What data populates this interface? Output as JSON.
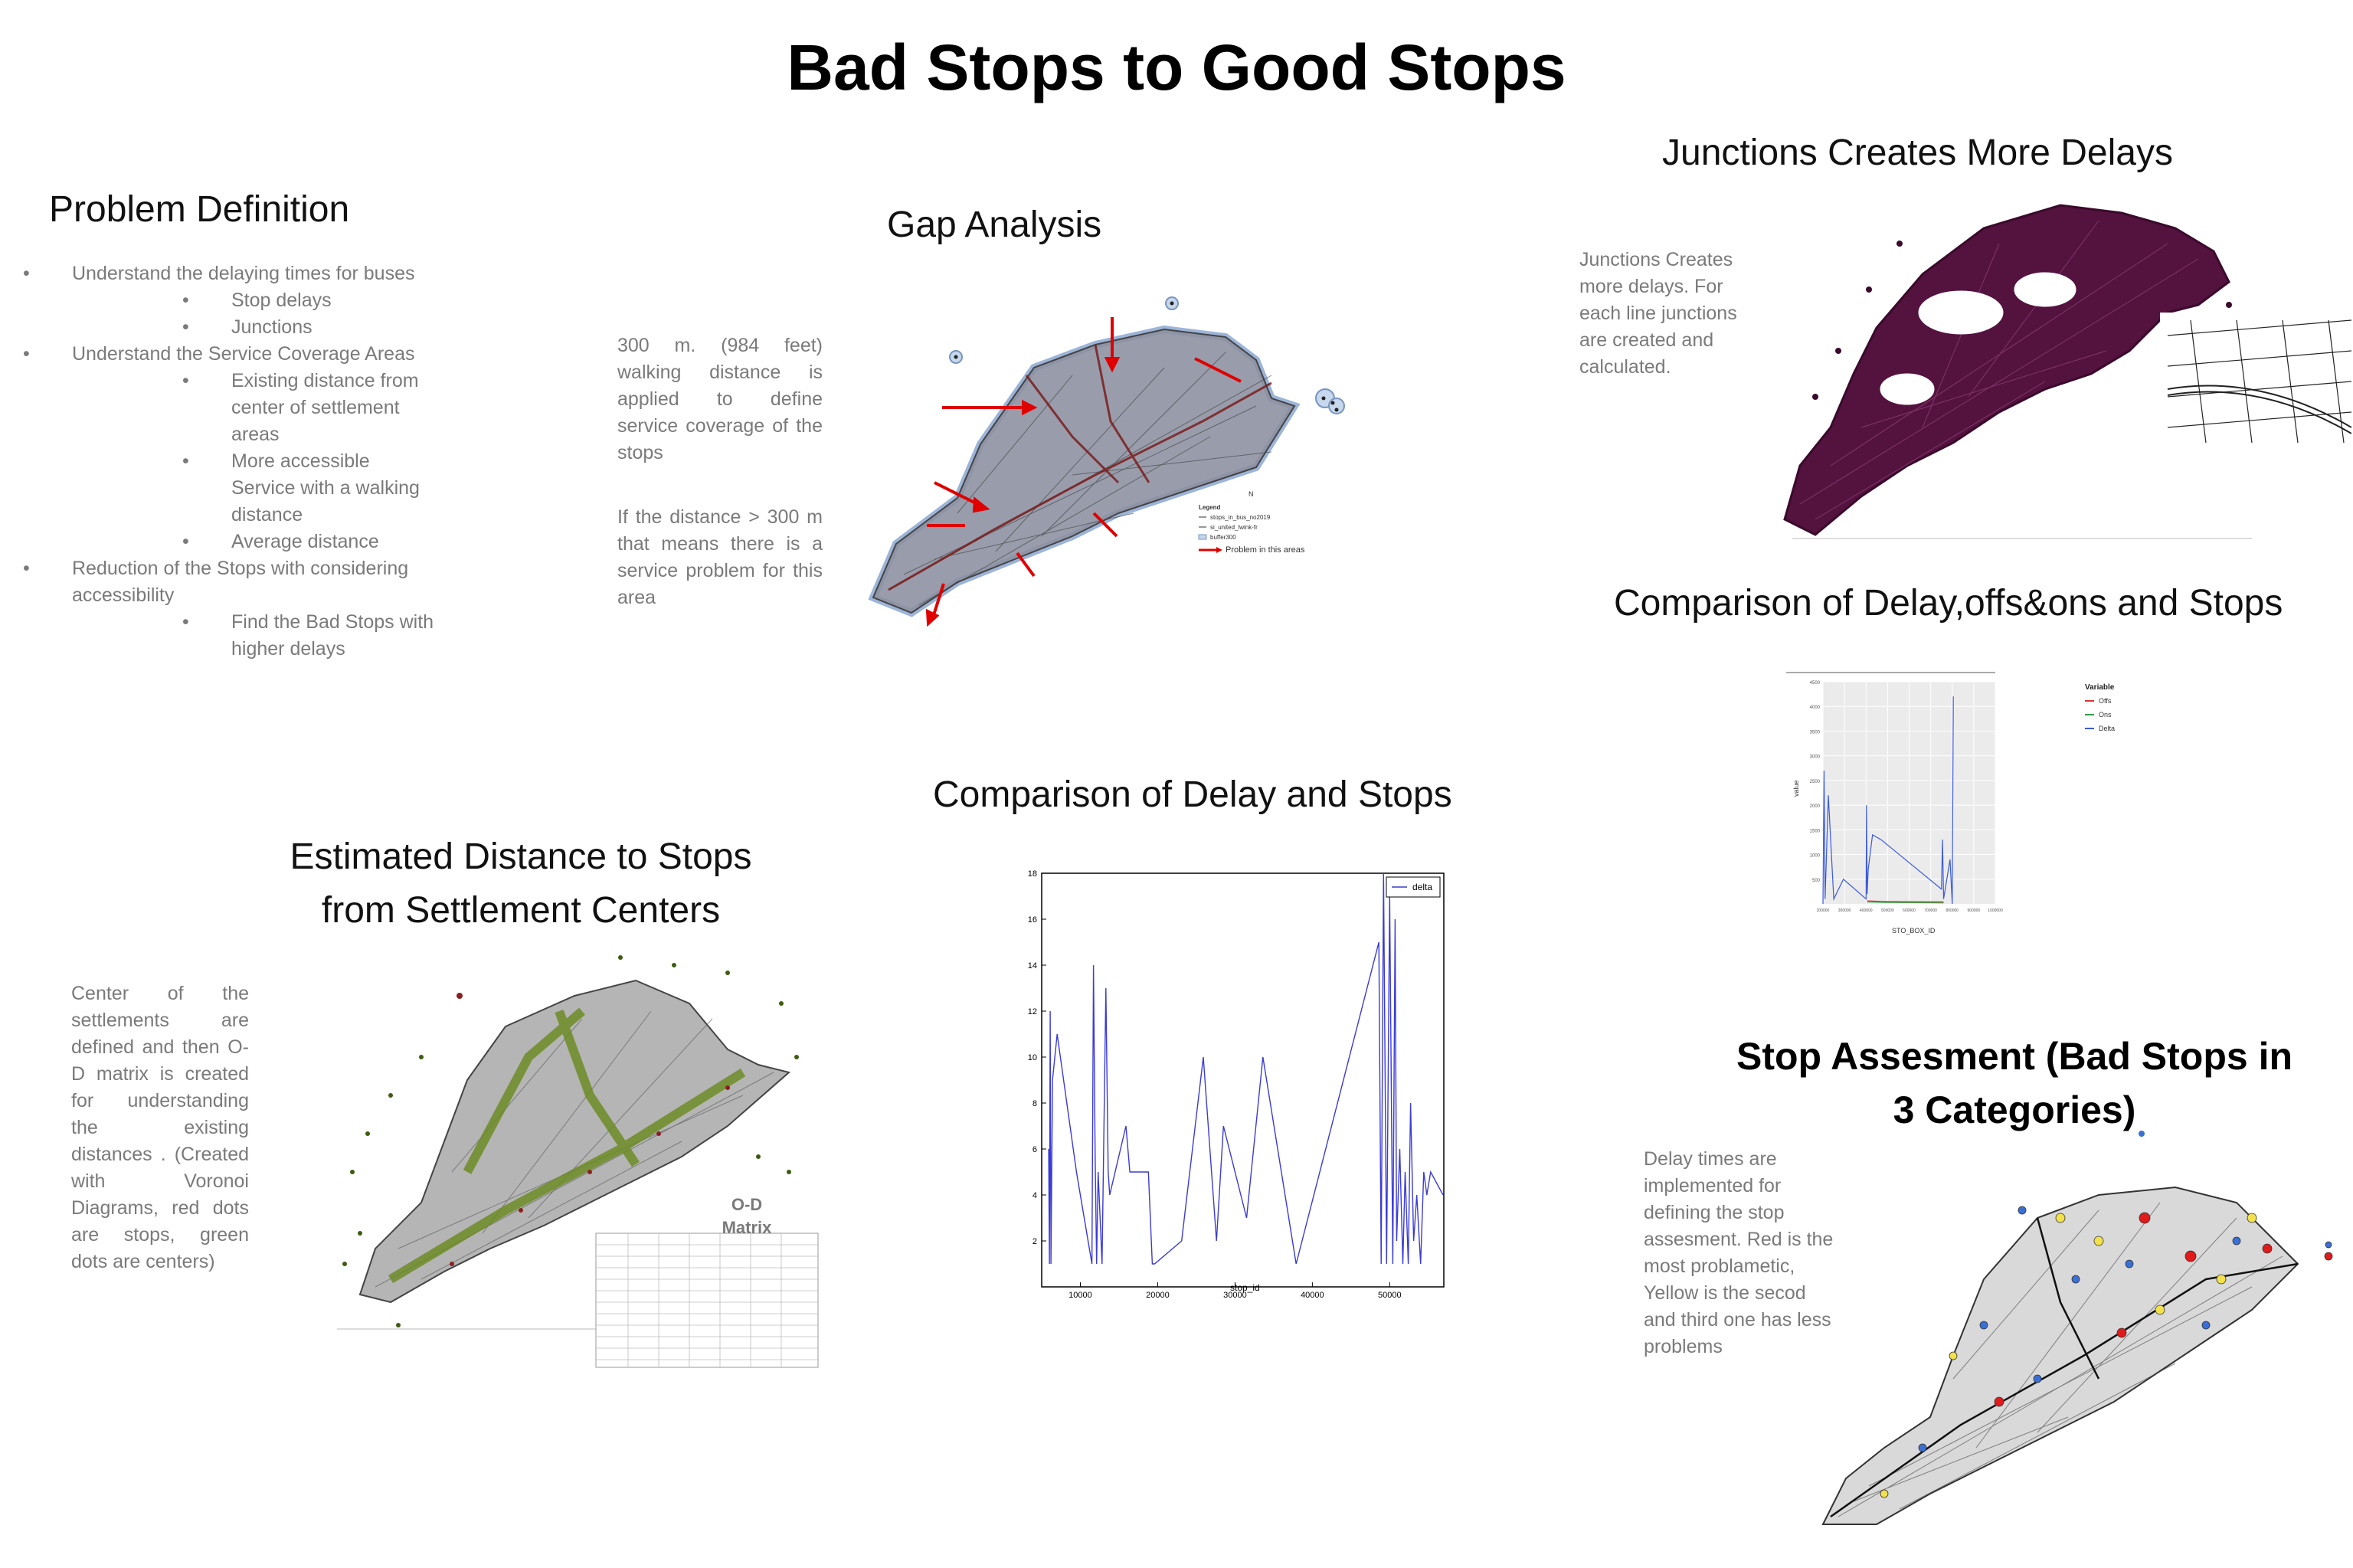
{
  "title": "Bad Stops to Good Stops",
  "problem": {
    "heading": "Problem Definition",
    "items": [
      {
        "level": 1,
        "text": "Understand the delaying times for buses"
      },
      {
        "level": 2,
        "text": "Stop delays"
      },
      {
        "level": 2,
        "text": "Junctions"
      },
      {
        "level": 1,
        "text": "Understand the Service Coverage Areas"
      },
      {
        "level": 2,
        "text": "Existing distance from center of settlement areas"
      },
      {
        "level": 2,
        "text": "More accessible Service with a walking distance"
      },
      {
        "level": 2,
        "text": "Average distance"
      },
      {
        "level": 1,
        "text": "Reduction of the Stops with considering accessibility"
      },
      {
        "level": 2,
        "text": "Find the Bad Stops with higher delays"
      }
    ]
  },
  "gap": {
    "heading": "Gap Analysis",
    "text1": "300 m. (984 feet) walking distance is applied to define service coverage of the stops",
    "text2": "If the distance > 300 m that means there is a service problem for this area",
    "legend": {
      "title": "Legend",
      "entries": [
        "stops_in_bus_no2019",
        "si_united_lwink-fr",
        "buffer300"
      ],
      "problem_label": "Problem in this areas"
    }
  },
  "junctions": {
    "heading": "Junctions Creates More Delays",
    "text": "Junctions Creates more delays. For each line junctions are created and calculated."
  },
  "comparison_offs": {
    "heading": "Comparison of Delay,offs&ons and Stops",
    "legend_title": "Variable",
    "legend_items": [
      {
        "name": "Offs",
        "color": "#e03131"
      },
      {
        "name": "Ons",
        "color": "#2f9e44"
      },
      {
        "name": "Delta",
        "color": "#3b5bdb"
      }
    ],
    "ylabel": "value",
    "xlabel": "STO_BOX_ID"
  },
  "delay_chart": {
    "heading": "Comparison of Delay and Stops",
    "legend": "delta",
    "xlabel": "stop_id"
  },
  "estimated": {
    "heading_line1": "Estimated Distance to Stops",
    "heading_line2": "from Settlement Centers",
    "text": "Center of the settlements are defined and then O-D matrix is created for understanding the existing distances . (Created with Voronoi Diagrams, red dots are stops, green dots are centers)",
    "od_label_line1": "O-D",
    "od_label_line2": "Matrix"
  },
  "assessment": {
    "heading_line1": "Stop Assesment (Bad Stops in",
    "heading_line2": "3 Categories)",
    "text": "Delay times are implemented for defining the stop assesment. Red is the most problametic, Yellow is the secod and third one has less problems"
  },
  "chart_data": [
    {
      "type": "line",
      "title": "Comparison of Delay and Stops",
      "xlabel": "stop_id",
      "ylabel": "",
      "xlim": [
        5000,
        57000
      ],
      "ylim": [
        0,
        18
      ],
      "xticks": [
        10000,
        20000,
        30000,
        40000,
        50000
      ],
      "yticks": [
        2,
        4,
        6,
        8,
        10,
        12,
        14,
        16,
        18
      ],
      "legend": "delta",
      "series": [
        {
          "name": "delta",
          "x": [
            5900,
            6000,
            6100,
            6200,
            6400,
            7000,
            9500,
            11500,
            11700,
            11900,
            12100,
            12300,
            12800,
            13300,
            13600,
            13800,
            15900,
            16400,
            18800,
            19300,
            19600,
            23100,
            25900,
            27600,
            28500,
            31500,
            33600,
            37900,
            48600,
            48900,
            49200,
            49600,
            50000,
            50400,
            50700,
            50900,
            51300,
            51700,
            52000,
            52400,
            52700,
            53100,
            53500,
            54000,
            54400,
            54800,
            55300,
            56900
          ],
          "y": [
            6,
            1,
            12,
            1,
            9,
            11,
            5,
            1,
            14,
            6,
            1,
            5,
            1,
            13,
            5,
            4,
            7,
            5,
            5,
            1,
            1,
            2,
            10,
            2,
            7,
            3,
            10,
            1,
            15,
            1,
            18,
            1,
            17,
            1,
            16,
            2,
            6,
            1,
            5,
            1,
            8,
            2,
            4,
            1,
            5,
            4,
            5,
            4
          ]
        }
      ]
    },
    {
      "type": "line",
      "title": "Comparison of Delay,offs&ons and Stops",
      "xlabel": "STO_BOX_ID",
      "ylabel": "value",
      "xlim": [
        200000,
        1000000
      ],
      "ylim": [
        0,
        4500
      ],
      "series": [
        {
          "name": "Delta",
          "x": [
            200000,
            205000,
            210000,
            225000,
            250000,
            295000,
            400000,
            402000,
            405000,
            410000,
            430000,
            470000,
            750000,
            755000,
            760000,
            790000,
            800000,
            805000
          ],
          "y": [
            0,
            2700,
            100,
            2200,
            100,
            500,
            100,
            2000,
            200,
            700,
            1400,
            1300,
            300,
            1300,
            100,
            900,
            0,
            4200
          ]
        },
        {
          "name": "Offs",
          "x": [
            405000,
            490000,
            760000
          ],
          "y": [
            60,
            50,
            40
          ]
        },
        {
          "name": "Ons",
          "x": [
            405000,
            490000,
            760000
          ],
          "y": [
            40,
            30,
            20
          ]
        }
      ]
    }
  ]
}
